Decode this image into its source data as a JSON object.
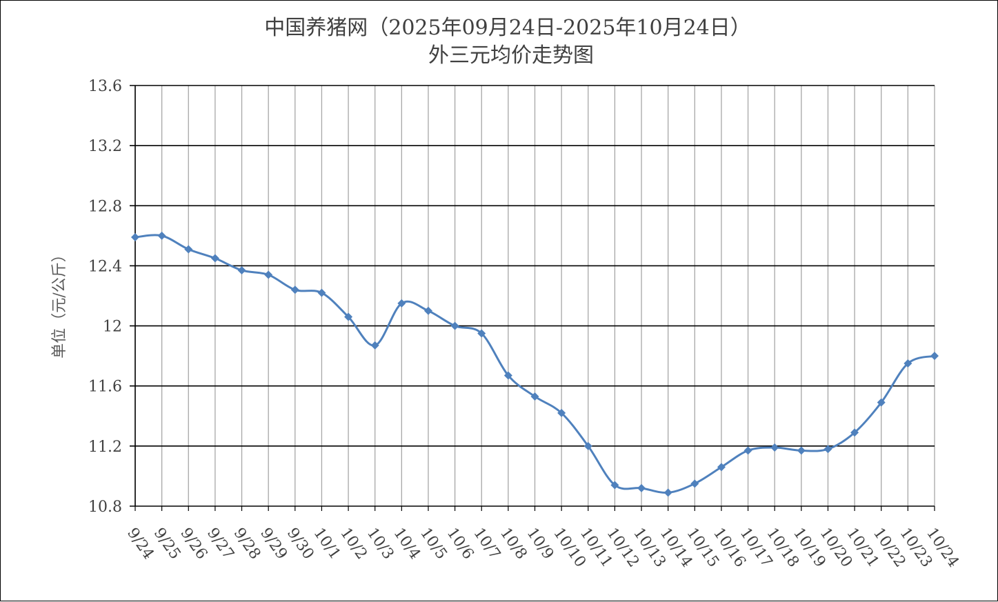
{
  "chart_data": {
    "type": "line",
    "title": "中国养猪网（2025年09月24日-2025年10月24日）",
    "subtitle": "外三元均价走势图",
    "ylabel": "单位（元/公斤）",
    "xlabel": "",
    "ylim": [
      10.8,
      13.6
    ],
    "yticks": [
      "13.6",
      "13.2",
      "12.8",
      "12.4",
      "12",
      "11.6",
      "11.2",
      "10.8"
    ],
    "grid": true,
    "legend": "none",
    "line_color": "#4F81BD",
    "categories": [
      "9/24",
      "9/25",
      "9/26",
      "9/27",
      "9/28",
      "9/29",
      "9/30",
      "10/1",
      "10/2",
      "10/3",
      "10/4",
      "10/5",
      "10/6",
      "10/7",
      "10/8",
      "10/9",
      "10/10",
      "10/11",
      "10/12",
      "10/13",
      "10/14",
      "10/15",
      "10/16",
      "10/17",
      "10/18",
      "10/19",
      "10/20",
      "10/21",
      "10/22",
      "10/23",
      "10/24"
    ],
    "values": [
      12.59,
      12.6,
      12.51,
      12.45,
      12.37,
      12.34,
      12.24,
      12.22,
      12.06,
      11.87,
      12.15,
      12.1,
      12.0,
      11.95,
      11.67,
      11.53,
      11.42,
      11.2,
      10.94,
      10.92,
      10.89,
      10.95,
      11.06,
      11.17,
      11.19,
      11.17,
      11.18,
      11.29,
      11.49,
      11.75,
      11.8
    ]
  }
}
